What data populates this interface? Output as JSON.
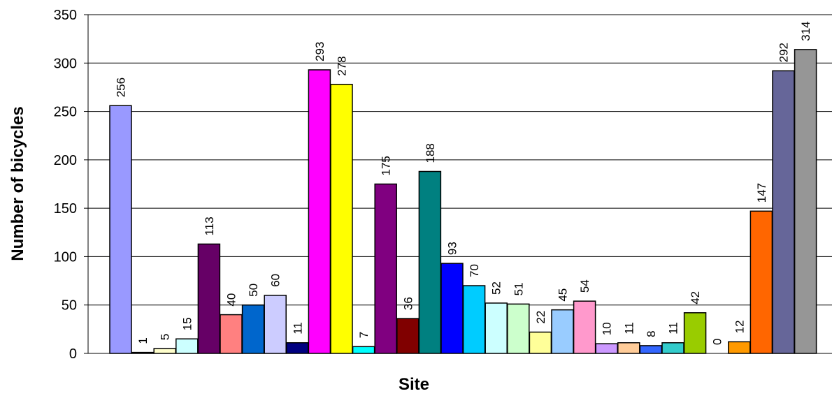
{
  "chart_data": {
    "type": "bar",
    "xlabel": "Site",
    "ylabel": "Number of bicycles",
    "ylim": [
      0,
      350
    ],
    "yticks": [
      0,
      50,
      100,
      150,
      200,
      250,
      300,
      350
    ],
    "grid": true,
    "legend": "none",
    "plot_background": "#c0c0c0",
    "values": [
      256,
      1,
      5,
      15,
      113,
      40,
      50,
      60,
      11,
      293,
      278,
      7,
      175,
      36,
      188,
      93,
      70,
      52,
      51,
      22,
      45,
      54,
      10,
      11,
      8,
      11,
      42,
      0,
      12,
      147,
      292,
      314
    ],
    "colors": [
      "#9999ff",
      "#993366",
      "#ffffcc",
      "#ccffff",
      "#660066",
      "#ff8080",
      "#0066cc",
      "#ccccff",
      "#000080",
      "#ff00ff",
      "#ffff00",
      "#00ffff",
      "#800080",
      "#800000",
      "#008080",
      "#0000ff",
      "#00ccff",
      "#ccffff",
      "#ccffcc",
      "#ffff99",
      "#99ccff",
      "#ff99cc",
      "#cc99ff",
      "#ffcc99",
      "#3366ff",
      "#33cccc",
      "#99cc00",
      "#ffcc00",
      "#ff9900",
      "#ff6600",
      "#666699",
      "#969696"
    ]
  }
}
